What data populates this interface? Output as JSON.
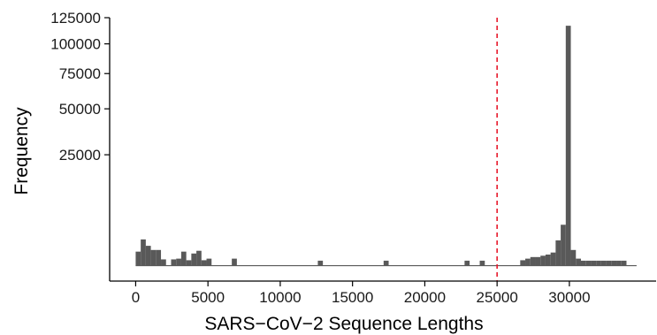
{
  "chart_data": {
    "type": "bar",
    "xlabel": "SARS−CoV−2 Sequence Lengths",
    "ylabel": "Frequency",
    "bar_color": "#595959",
    "axis_color": "#000000",
    "reference_line": {
      "x": 25000,
      "color": "#e8192c",
      "style": "dashed"
    },
    "xlim": [
      -1800,
      36000
    ],
    "ylim": [
      0,
      125000
    ],
    "y_scale": "sqrt",
    "x_ticks": [
      0,
      5000,
      10000,
      15000,
      20000,
      25000,
      30000
    ],
    "x_tick_labels": [
      "0",
      "5000",
      "10000",
      "15000",
      "20000",
      "25000",
      "30000"
    ],
    "y_ticks": [
      25000,
      50000,
      75000,
      100000,
      125000
    ],
    "y_tick_labels": [
      "25000",
      "50000",
      "75000",
      "100000",
      "125000"
    ],
    "bin_width": 350,
    "bins": [
      {
        "x": 0,
        "y": 400
      },
      {
        "x": 350,
        "y": 1400
      },
      {
        "x": 700,
        "y": 800
      },
      {
        "x": 1050,
        "y": 500
      },
      {
        "x": 1400,
        "y": 500
      },
      {
        "x": 1750,
        "y": 80
      },
      {
        "x": 2450,
        "y": 80
      },
      {
        "x": 2800,
        "y": 100
      },
      {
        "x": 3150,
        "y": 400
      },
      {
        "x": 3500,
        "y": 60
      },
      {
        "x": 3850,
        "y": 300
      },
      {
        "x": 4200,
        "y": 450
      },
      {
        "x": 4550,
        "y": 60
      },
      {
        "x": 4900,
        "y": 100
      },
      {
        "x": 6650,
        "y": 100
      },
      {
        "x": 12600,
        "y": 50
      },
      {
        "x": 17150,
        "y": 50
      },
      {
        "x": 22750,
        "y": 50
      },
      {
        "x": 23800,
        "y": 50
      },
      {
        "x": 26600,
        "y": 60
      },
      {
        "x": 26950,
        "y": 100
      },
      {
        "x": 27300,
        "y": 150
      },
      {
        "x": 27650,
        "y": 150
      },
      {
        "x": 28000,
        "y": 200
      },
      {
        "x": 28350,
        "y": 250
      },
      {
        "x": 28700,
        "y": 350
      },
      {
        "x": 29050,
        "y": 1300
      },
      {
        "x": 29400,
        "y": 3400
      },
      {
        "x": 29750,
        "y": 117000
      },
      {
        "x": 30100,
        "y": 500
      },
      {
        "x": 30450,
        "y": 100
      },
      {
        "x": 30800,
        "y": 50
      },
      {
        "x": 31150,
        "y": 50
      },
      {
        "x": 31500,
        "y": 50
      },
      {
        "x": 31850,
        "y": 50
      },
      {
        "x": 32200,
        "y": 50
      },
      {
        "x": 32550,
        "y": 50
      },
      {
        "x": 32900,
        "y": 50
      },
      {
        "x": 33250,
        "y": 50
      },
      {
        "x": 33600,
        "y": 50
      }
    ],
    "baseline_range": [
      0,
      34650
    ]
  }
}
